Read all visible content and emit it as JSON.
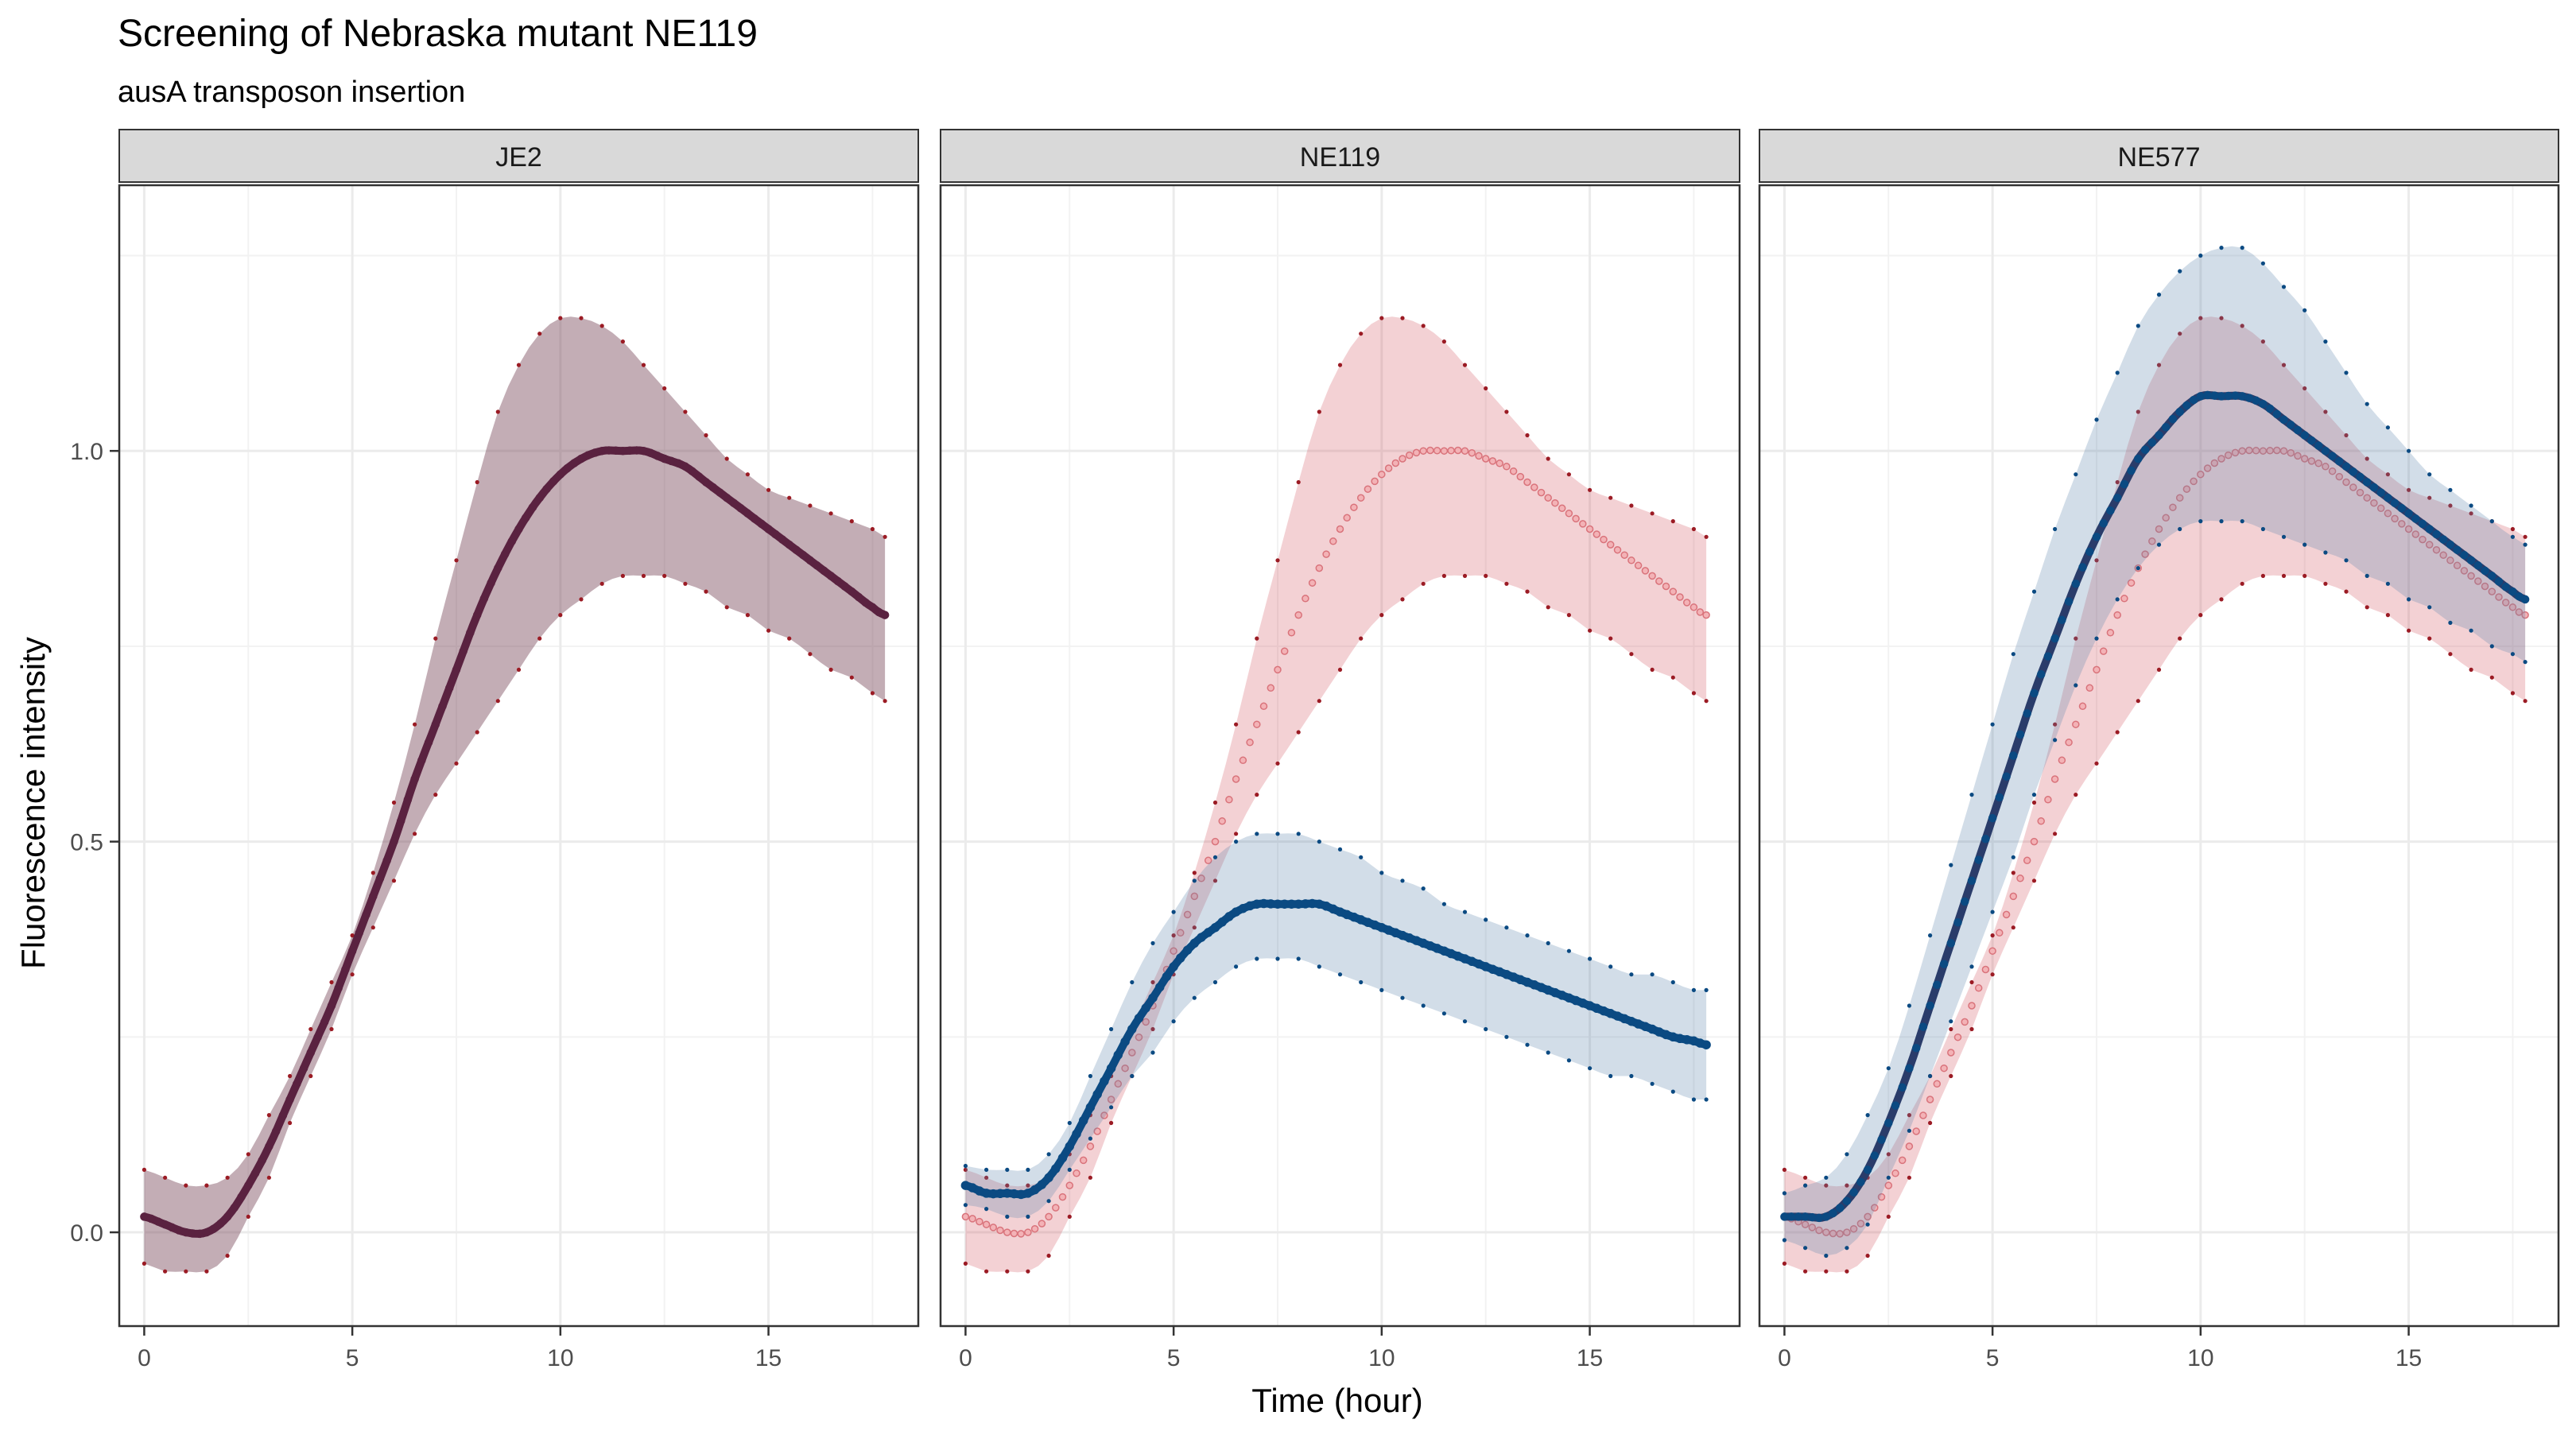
{
  "title": "Screening of Nebraska mutant NE119",
  "subtitle": "ausA transposon insertion",
  "colors": {
    "reference": "#9b1b24",
    "reference_ribbon": "#e8b6ba",
    "reference_overlay": "#7a4a5c",
    "mutant": "#0b4a82",
    "mutant_ribbon": "#bccddb",
    "mutant_overlay": "#2a3c6a",
    "strip_fill": "#d9d9d9",
    "grid": "#ebebeb"
  },
  "chart_data": {
    "type": "line",
    "xlabel": "Time (hour)",
    "ylabel": "Fluorescence intensity",
    "xlim": [
      -0.6,
      18.6
    ],
    "ylim": [
      -0.12,
      1.34
    ],
    "x_ticks": [
      0,
      5,
      10,
      15
    ],
    "y_ticks": [
      0.0,
      0.5,
      1.0
    ],
    "x_tick_labels": [
      "0",
      "5",
      "10",
      "15"
    ],
    "y_tick_labels": [
      "0.0",
      "0.5",
      "1.0"
    ],
    "grid": true,
    "legend": "none",
    "x": [
      0,
      0.5,
      1,
      1.5,
      2,
      2.5,
      3,
      3.5,
      4,
      4.5,
      5,
      5.5,
      6,
      6.5,
      7,
      7.5,
      8,
      8.5,
      9,
      9.5,
      10,
      10.5,
      11,
      11.5,
      12,
      12.5,
      13,
      13.5,
      14,
      14.5,
      15,
      15.5,
      16,
      16.5,
      17,
      17.5,
      17.8
    ],
    "panels": [
      {
        "name": "JE2",
        "series": [
          {
            "role": "reference",
            "style": "overlay",
            "mean": [
              0.02,
              0.01,
              0.0,
              0.0,
              0.02,
              0.06,
              0.11,
              0.17,
              0.23,
              0.29,
              0.36,
              0.43,
              0.5,
              0.58,
              0.65,
              0.72,
              0.79,
              0.85,
              0.9,
              0.94,
              0.97,
              0.99,
              1.0,
              1.0,
              1.0,
              0.99,
              0.98,
              0.96,
              0.94,
              0.92,
              0.9,
              0.88,
              0.86,
              0.84,
              0.82,
              0.8,
              0.79
            ],
            "upper": [
              0.08,
              0.07,
              0.06,
              0.06,
              0.07,
              0.1,
              0.15,
              0.2,
              0.26,
              0.32,
              0.38,
              0.46,
              0.55,
              0.65,
              0.76,
              0.86,
              0.96,
              1.05,
              1.11,
              1.15,
              1.17,
              1.17,
              1.16,
              1.14,
              1.11,
              1.08,
              1.05,
              1.02,
              0.99,
              0.97,
              0.95,
              0.94,
              0.93,
              0.92,
              0.91,
              0.9,
              0.89
            ],
            "lower": [
              -0.04,
              -0.05,
              -0.05,
              -0.05,
              -0.03,
              0.02,
              0.07,
              0.14,
              0.2,
              0.26,
              0.33,
              0.39,
              0.45,
              0.51,
              0.56,
              0.6,
              0.64,
              0.68,
              0.72,
              0.76,
              0.79,
              0.81,
              0.83,
              0.84,
              0.84,
              0.84,
              0.83,
              0.82,
              0.8,
              0.79,
              0.77,
              0.76,
              0.74,
              0.72,
              0.71,
              0.69,
              0.68
            ]
          }
        ]
      },
      {
        "name": "NE119",
        "series": [
          {
            "role": "reference",
            "style": "light",
            "mean": [
              0.02,
              0.01,
              0.0,
              0.0,
              0.02,
              0.06,
              0.11,
              0.17,
              0.23,
              0.29,
              0.36,
              0.43,
              0.5,
              0.58,
              0.65,
              0.72,
              0.79,
              0.85,
              0.9,
              0.94,
              0.97,
              0.99,
              1.0,
              1.0,
              1.0,
              0.99,
              0.98,
              0.96,
              0.94,
              0.92,
              0.9,
              0.88,
              0.86,
              0.84,
              0.82,
              0.8,
              0.79
            ],
            "upper": [
              0.08,
              0.07,
              0.06,
              0.06,
              0.07,
              0.1,
              0.15,
              0.2,
              0.26,
              0.32,
              0.38,
              0.46,
              0.55,
              0.65,
              0.76,
              0.86,
              0.96,
              1.05,
              1.11,
              1.15,
              1.17,
              1.17,
              1.16,
              1.14,
              1.11,
              1.08,
              1.05,
              1.02,
              0.99,
              0.97,
              0.95,
              0.94,
              0.93,
              0.92,
              0.91,
              0.9,
              0.89
            ],
            "lower": [
              -0.04,
              -0.05,
              -0.05,
              -0.05,
              -0.03,
              0.02,
              0.07,
              0.14,
              0.2,
              0.26,
              0.33,
              0.39,
              0.45,
              0.51,
              0.56,
              0.6,
              0.64,
              0.68,
              0.72,
              0.76,
              0.79,
              0.81,
              0.83,
              0.84,
              0.84,
              0.84,
              0.83,
              0.82,
              0.8,
              0.79,
              0.77,
              0.76,
              0.74,
              0.72,
              0.71,
              0.69,
              0.68
            ]
          },
          {
            "role": "mutant",
            "style": "solid",
            "mean": [
              0.06,
              0.05,
              0.05,
              0.05,
              0.07,
              0.11,
              0.16,
              0.21,
              0.26,
              0.3,
              0.34,
              0.37,
              0.39,
              0.41,
              0.42,
              0.42,
              0.42,
              0.42,
              0.41,
              0.4,
              0.39,
              0.38,
              0.37,
              0.36,
              0.35,
              0.34,
              0.33,
              0.32,
              0.31,
              0.3,
              0.29,
              0.28,
              0.27,
              0.26,
              0.25,
              0.245,
              0.24
            ],
            "upper": [
              0.085,
              0.08,
              0.08,
              0.08,
              0.1,
              0.14,
              0.2,
              0.26,
              0.32,
              0.37,
              0.41,
              0.45,
              0.48,
              0.5,
              0.51,
              0.51,
              0.51,
              0.5,
              0.49,
              0.48,
              0.46,
              0.45,
              0.44,
              0.42,
              0.41,
              0.4,
              0.39,
              0.38,
              0.37,
              0.36,
              0.35,
              0.34,
              0.33,
              0.33,
              0.32,
              0.31,
              0.31
            ],
            "lower": [
              0.035,
              0.03,
              0.02,
              0.02,
              0.04,
              0.08,
              0.12,
              0.16,
              0.2,
              0.23,
              0.27,
              0.3,
              0.32,
              0.34,
              0.35,
              0.35,
              0.35,
              0.34,
              0.33,
              0.32,
              0.31,
              0.3,
              0.29,
              0.28,
              0.27,
              0.26,
              0.25,
              0.24,
              0.23,
              0.22,
              0.21,
              0.2,
              0.2,
              0.19,
              0.18,
              0.17,
              0.17
            ]
          }
        ]
      },
      {
        "name": "NE577",
        "series": [
          {
            "role": "reference",
            "style": "light",
            "mean": [
              0.02,
              0.01,
              0.0,
              0.0,
              0.02,
              0.06,
              0.11,
              0.17,
              0.23,
              0.29,
              0.36,
              0.43,
              0.5,
              0.58,
              0.65,
              0.72,
              0.79,
              0.85,
              0.9,
              0.94,
              0.97,
              0.99,
              1.0,
              1.0,
              1.0,
              0.99,
              0.98,
              0.96,
              0.94,
              0.92,
              0.9,
              0.88,
              0.86,
              0.84,
              0.82,
              0.8,
              0.79
            ],
            "upper": [
              0.08,
              0.07,
              0.06,
              0.06,
              0.07,
              0.1,
              0.15,
              0.2,
              0.26,
              0.32,
              0.38,
              0.46,
              0.55,
              0.65,
              0.76,
              0.86,
              0.96,
              1.05,
              1.11,
              1.15,
              1.17,
              1.17,
              1.16,
              1.14,
              1.11,
              1.08,
              1.05,
              1.02,
              0.99,
              0.97,
              0.95,
              0.94,
              0.93,
              0.92,
              0.91,
              0.9,
              0.89
            ],
            "lower": [
              -0.04,
              -0.05,
              -0.05,
              -0.05,
              -0.03,
              0.02,
              0.07,
              0.14,
              0.2,
              0.26,
              0.33,
              0.39,
              0.45,
              0.51,
              0.56,
              0.6,
              0.64,
              0.68,
              0.72,
              0.76,
              0.79,
              0.81,
              0.83,
              0.84,
              0.84,
              0.84,
              0.83,
              0.82,
              0.8,
              0.79,
              0.77,
              0.76,
              0.74,
              0.72,
              0.71,
              0.69,
              0.68
            ]
          },
          {
            "role": "mutant",
            "style": "overlay",
            "mean": [
              0.02,
              0.02,
              0.02,
              0.04,
              0.08,
              0.14,
              0.21,
              0.29,
              0.37,
              0.45,
              0.53,
              0.61,
              0.69,
              0.76,
              0.83,
              0.89,
              0.94,
              0.99,
              1.02,
              1.05,
              1.07,
              1.07,
              1.07,
              1.06,
              1.04,
              1.02,
              1.0,
              0.98,
              0.96,
              0.94,
              0.92,
              0.9,
              0.88,
              0.86,
              0.84,
              0.82,
              0.81
            ],
            "upper": [
              0.05,
              0.06,
              0.07,
              0.1,
              0.15,
              0.21,
              0.29,
              0.38,
              0.47,
              0.56,
              0.65,
              0.74,
              0.82,
              0.9,
              0.97,
              1.04,
              1.1,
              1.16,
              1.2,
              1.23,
              1.25,
              1.26,
              1.26,
              1.24,
              1.21,
              1.18,
              1.14,
              1.1,
              1.06,
              1.03,
              1.0,
              0.97,
              0.95,
              0.93,
              0.91,
              0.89,
              0.88
            ],
            "lower": [
              -0.01,
              -0.02,
              -0.03,
              -0.02,
              0.01,
              0.07,
              0.13,
              0.2,
              0.27,
              0.34,
              0.41,
              0.48,
              0.56,
              0.63,
              0.7,
              0.76,
              0.81,
              0.85,
              0.88,
              0.9,
              0.91,
              0.91,
              0.91,
              0.9,
              0.89,
              0.88,
              0.87,
              0.86,
              0.84,
              0.83,
              0.81,
              0.8,
              0.78,
              0.77,
              0.75,
              0.74,
              0.73
            ]
          }
        ]
      }
    ]
  }
}
